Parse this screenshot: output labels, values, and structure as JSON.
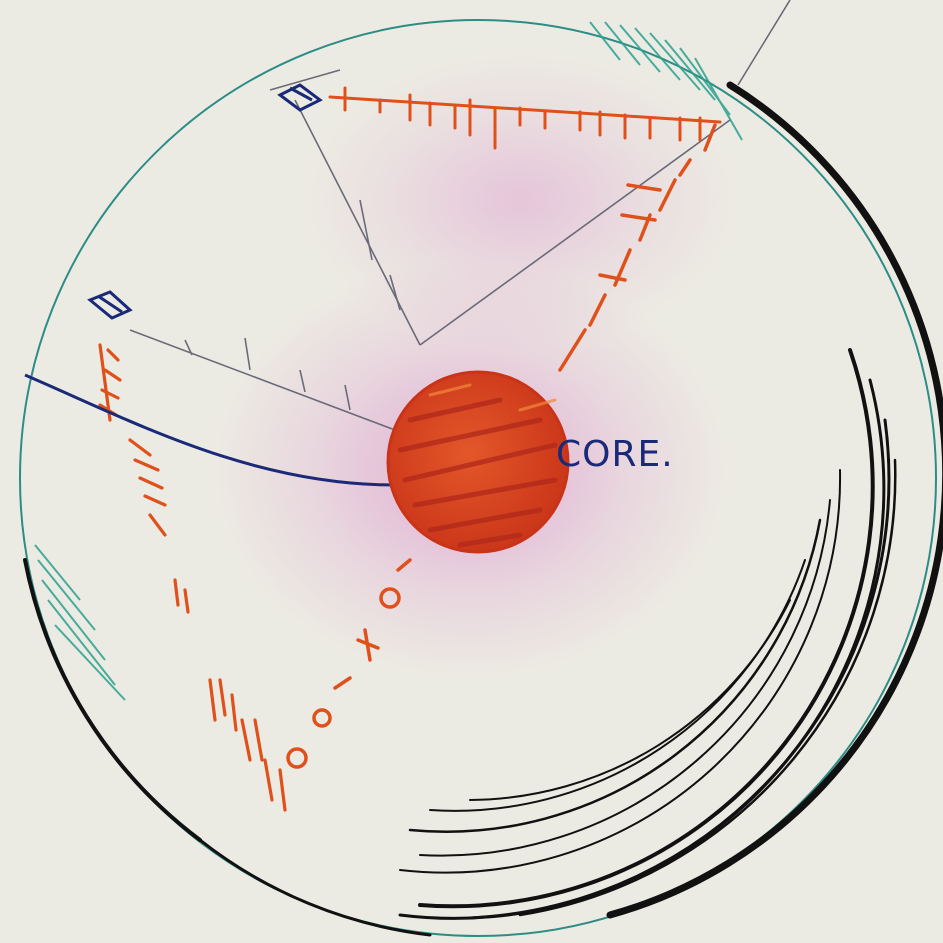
{
  "diagram": {
    "labels": {
      "core": "CORE."
    }
  },
  "colors": {
    "paper": "#ecebe3",
    "ink_black": "#111111",
    "ink_navy": "#1a2a78",
    "orange": "#e0501a",
    "red": "#d23a1e",
    "teal": "#2aa18e",
    "magenta": "#d878c6",
    "pencil": "#6a6a78"
  }
}
